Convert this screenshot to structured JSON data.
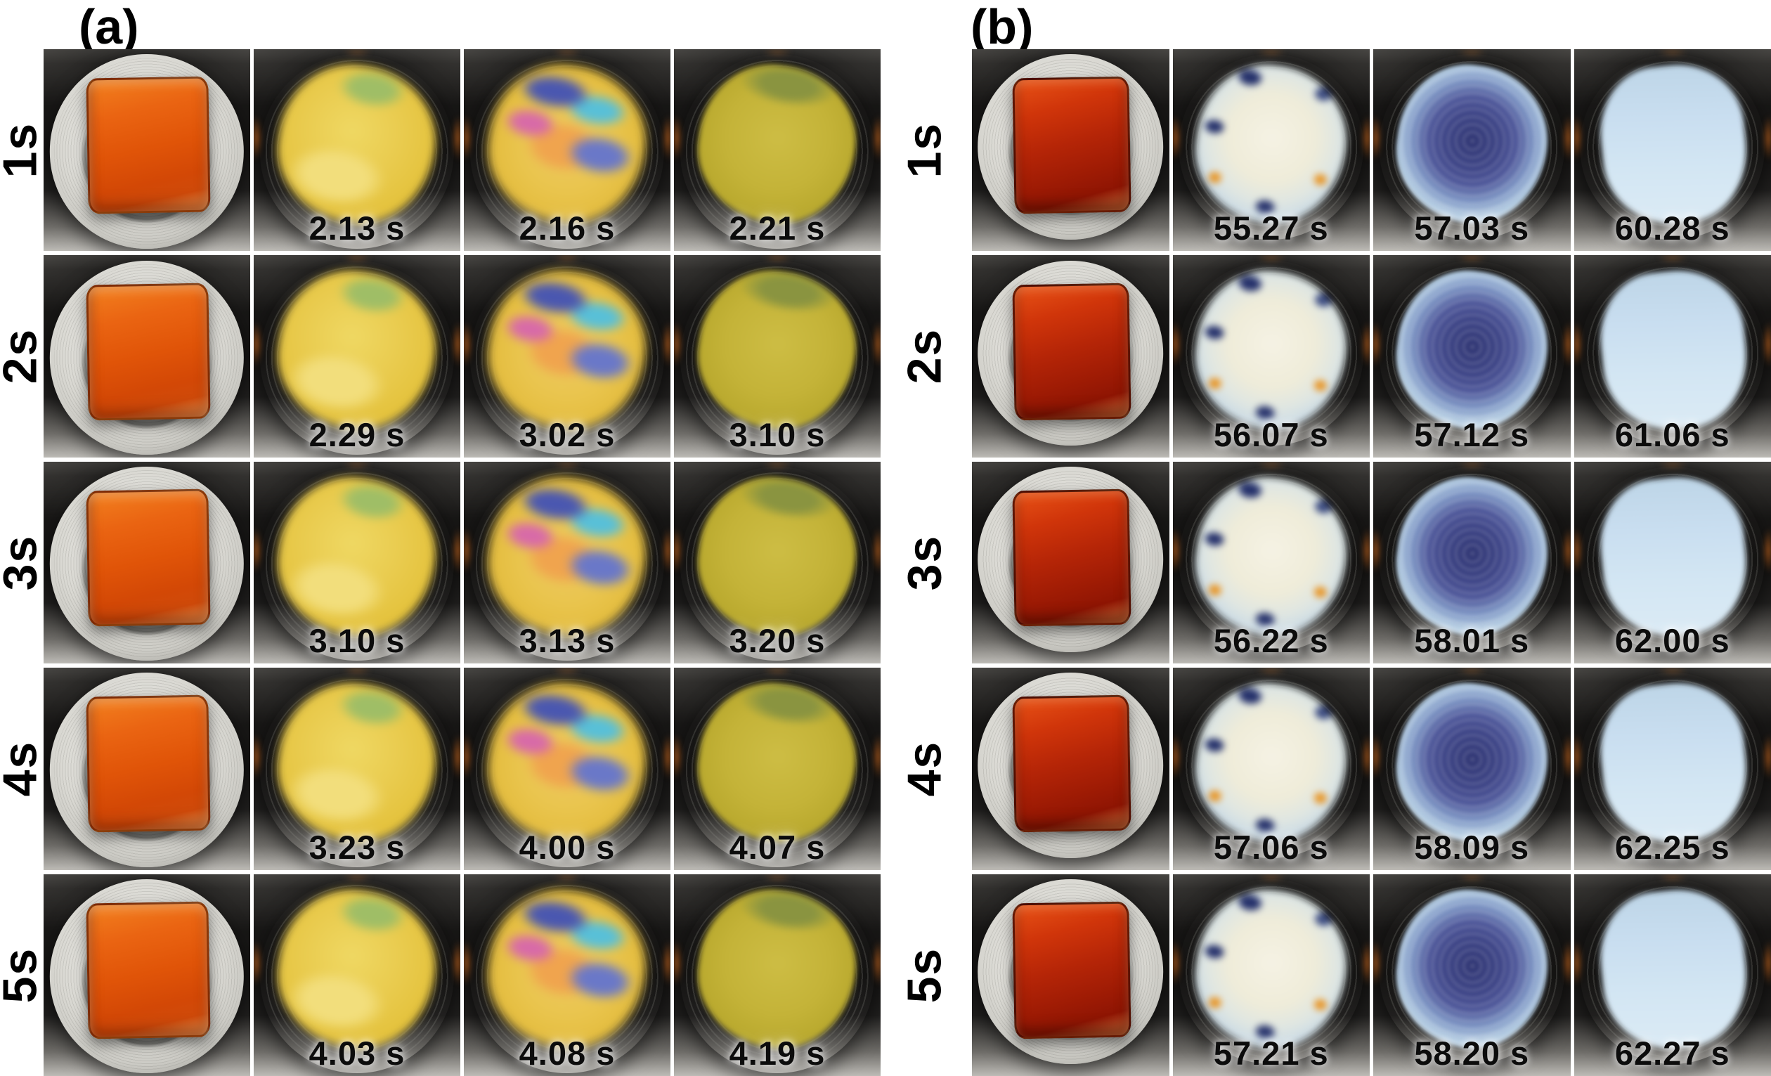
{
  "figure": {
    "background": "#ffffff",
    "panels": [
      {
        "id": "a",
        "label": "(a)",
        "rows": [
          {
            "label": "1s",
            "frames": [
              {
                "type": "initial-square-film"
              },
              {
                "type": "spreading-yellow",
                "time": "2.13 s"
              },
              {
                "type": "interference-rainbow",
                "time": "2.16 s"
              },
              {
                "type": "uniform-olive",
                "time": "2.21 s"
              }
            ]
          },
          {
            "label": "2s",
            "frames": [
              {
                "type": "initial-square-film"
              },
              {
                "type": "spreading-yellow",
                "time": "2.29 s"
              },
              {
                "type": "interference-rainbow",
                "time": "3.02 s"
              },
              {
                "type": "uniform-olive",
                "time": "3.10 s"
              }
            ]
          },
          {
            "label": "3s",
            "frames": [
              {
                "type": "initial-square-film"
              },
              {
                "type": "spreading-yellow",
                "time": "3.10 s"
              },
              {
                "type": "interference-rainbow",
                "time": "3.13 s"
              },
              {
                "type": "uniform-olive",
                "time": "3.20 s"
              }
            ]
          },
          {
            "label": "4s",
            "frames": [
              {
                "type": "initial-square-film"
              },
              {
                "type": "spreading-yellow",
                "time": "3.23 s"
              },
              {
                "type": "interference-rainbow",
                "time": "4.00 s"
              },
              {
                "type": "uniform-olive",
                "time": "4.07 s"
              }
            ]
          },
          {
            "label": "5s",
            "frames": [
              {
                "type": "initial-square-film"
              },
              {
                "type": "spreading-yellow",
                "time": "4.03 s"
              },
              {
                "type": "interference-rainbow",
                "time": "4.08 s"
              },
              {
                "type": "uniform-olive",
                "time": "4.19 s"
              }
            ]
          }
        ]
      },
      {
        "id": "b",
        "label": "(b)",
        "rows": [
          {
            "label": "1s",
            "frames": [
              {
                "type": "initial-square-film-dark"
              },
              {
                "type": "spreading-pale",
                "time": "55.27 s"
              },
              {
                "type": "interference-indigo",
                "time": "57.03 s"
              },
              {
                "type": "uniform-blue",
                "time": "60.28 s"
              }
            ]
          },
          {
            "label": "2s",
            "frames": [
              {
                "type": "initial-square-film-dark"
              },
              {
                "type": "spreading-pale",
                "time": "56.07 s"
              },
              {
                "type": "interference-indigo",
                "time": "57.12 s"
              },
              {
                "type": "uniform-blue",
                "time": "61.06 s"
              }
            ]
          },
          {
            "label": "3s",
            "frames": [
              {
                "type": "initial-square-film-dark"
              },
              {
                "type": "spreading-pale",
                "time": "56.22 s"
              },
              {
                "type": "interference-indigo",
                "time": "58.01 s"
              },
              {
                "type": "uniform-blue",
                "time": "62.00 s"
              }
            ]
          },
          {
            "label": "4s",
            "frames": [
              {
                "type": "initial-square-film-dark"
              },
              {
                "type": "spreading-pale",
                "time": "57.06 s"
              },
              {
                "type": "interference-indigo",
                "time": "58.09 s"
              },
              {
                "type": "uniform-blue",
                "time": "62.25 s"
              }
            ]
          },
          {
            "label": "5s",
            "frames": [
              {
                "type": "initial-square-film-dark"
              },
              {
                "type": "spreading-pale",
                "time": "57.21 s"
              },
              {
                "type": "interference-indigo",
                "time": "58.20 s"
              },
              {
                "type": "uniform-blue",
                "time": "62.27 s"
              }
            ]
          }
        ]
      }
    ],
    "palette": {
      "film_initial_a": "#e05408",
      "film_initial_b": "#b52507",
      "spread_yellow": "#e4c23c",
      "interference_rainbow_blue": "#4a57b0",
      "interference_rainbow_teal": "#58c0d8",
      "interference_rainbow_pink": "#d86aa8",
      "interference_rainbow_orange": "#f0a44e",
      "uniform_olive": "#b7a72c",
      "spread_pale": "#efecd9",
      "interference_indigo": "#3c4386",
      "uniform_blue": "#cfe3ef",
      "chuck_metal": "#e9e9e5",
      "frame_background": "#141312",
      "timestamp_text": "#0c0c0c",
      "label_text": "#000000"
    }
  }
}
